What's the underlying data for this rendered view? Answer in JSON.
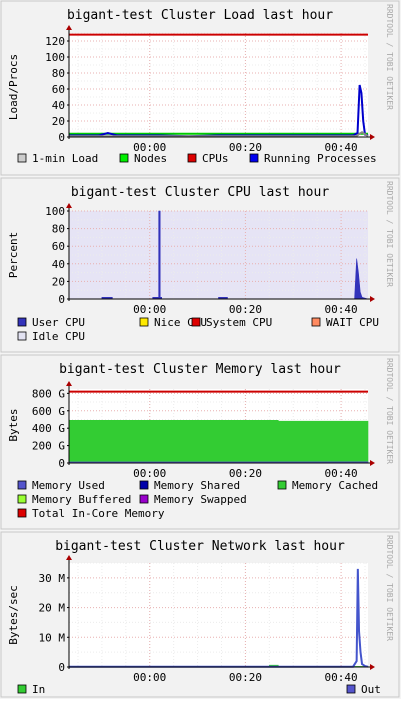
{
  "page": {
    "background": "#ffffff"
  },
  "chart_data": [
    {
      "type": "line",
      "title": "bigant-test Cluster Load last hour",
      "ylabel": "Load/Procs",
      "watermark": "RRDTOOL / TOBI OETIKER",
      "yticks": [
        "0",
        "20",
        "40",
        "60",
        "80",
        "100",
        "120"
      ],
      "ytick_values": [
        0,
        20,
        40,
        60,
        80,
        100,
        120
      ],
      "ylim": [
        0,
        130
      ],
      "xticks": [
        "00:00",
        "00:20",
        "00:40"
      ],
      "xtick_positions": [
        0.27,
        0.59,
        0.91
      ],
      "plot_background": "#ffffff",
      "legend": [
        {
          "label": "1-min Load",
          "color": "#cccccc"
        },
        {
          "label": "Nodes",
          "color": "#00ee00"
        },
        {
          "label": "CPUs",
          "color": "#dd0000"
        },
        {
          "label": "Running Processes",
          "color": "#0000ee"
        }
      ],
      "series": [
        {
          "name": "CPUs",
          "kind": "line",
          "color": "#cc0000",
          "x": [
            0,
            1
          ],
          "y": [
            128,
            128
          ]
        },
        {
          "name": "Nodes",
          "kind": "line",
          "color": "#00cc00",
          "x": [
            0,
            1
          ],
          "y": [
            4,
            4
          ]
        },
        {
          "name": "Running Processes",
          "kind": "line",
          "color": "#0000cc",
          "x": [
            0,
            0.05,
            0.1,
            0.13,
            0.16,
            0.2,
            0.3,
            0.4,
            0.5,
            0.6,
            0.7,
            0.8,
            0.9,
            0.95,
            0.965,
            0.972,
            0.978,
            0.984,
            0.99,
            1
          ],
          "y": [
            2,
            2,
            2,
            5,
            2,
            2,
            2,
            1,
            2,
            2,
            2,
            2,
            2,
            2,
            5,
            65,
            55,
            20,
            3,
            2
          ]
        },
        {
          "name": "1-min Load",
          "kind": "line",
          "color": "#888888",
          "x": [
            0,
            0.5,
            0.96,
            0.98,
            1
          ],
          "y": [
            1,
            1,
            1,
            6,
            1
          ]
        }
      ]
    },
    {
      "type": "area",
      "title": "bigant-test Cluster CPU last hour",
      "ylabel": "Percent",
      "watermark": "RRDTOOL / TOBI OETIKER",
      "yticks": [
        "0",
        "20",
        "40",
        "60",
        "80",
        "100"
      ],
      "ytick_values": [
        0,
        20,
        40,
        60,
        80,
        100
      ],
      "ylim": [
        0,
        100
      ],
      "xticks": [
        "00:00",
        "00:20",
        "00:40"
      ],
      "xtick_positions": [
        0.27,
        0.59,
        0.91
      ],
      "plot_background": "#e6e4f5",
      "legend": [
        {
          "label": "User CPU",
          "color": "#3333bb"
        },
        {
          "label": "Nice CPU",
          "color": "#ffea00"
        },
        {
          "label": "System CPU",
          "color": "#dd0000"
        },
        {
          "label": "WAIT CPU",
          "color": "#ff8a60"
        },
        {
          "label": "Idle CPU",
          "color": "#e2e2f2"
        }
      ],
      "series": [
        {
          "name": "User CPU",
          "kind": "area",
          "color": "#3333bb",
          "x": [
            0,
            0.11,
            0.11,
            0.145,
            0.145,
            0.28,
            0.28,
            0.3,
            0.3,
            0.305,
            0.305,
            0.31,
            0.31,
            0.5,
            0.5,
            0.53,
            0.53,
            0.955,
            0.962,
            0.968,
            0.974,
            0.98,
            0.99,
            1
          ],
          "y": [
            0,
            0,
            2,
            2,
            0,
            0,
            2,
            2,
            100,
            100,
            2,
            2,
            0,
            0,
            2,
            2,
            0,
            0,
            46,
            30,
            8,
            2,
            1,
            0
          ]
        }
      ]
    },
    {
      "type": "area",
      "title": "bigant-test Cluster Memory last hour",
      "ylabel": "Bytes",
      "watermark": "RRDTOOL / TOBI OETIKER",
      "yticks": [
        "0",
        "200 G",
        "400 G",
        "600 G",
        "800 G"
      ],
      "ytick_values": [
        0,
        200,
        400,
        600,
        800
      ],
      "ylim": [
        0,
        850
      ],
      "unit": "G",
      "xticks": [
        "00:00",
        "00:20",
        "00:40"
      ],
      "xtick_positions": [
        0.27,
        0.59,
        0.91
      ],
      "plot_background": "#ffffff",
      "legend": [
        {
          "label": "Memory Used",
          "color": "#5555cc"
        },
        {
          "label": "Memory Shared",
          "color": "#0000aa"
        },
        {
          "label": "Memory Cached",
          "color": "#33cc33"
        },
        {
          "label": "Memory Buffered",
          "color": "#99ff33"
        },
        {
          "label": "Memory Swapped",
          "color": "#9900cc"
        },
        {
          "label": "Total In-Core Memory",
          "color": "#dd0000"
        }
      ],
      "series": [
        {
          "name": "Total In-Core Memory",
          "kind": "line",
          "color": "#cc0000",
          "x": [
            0,
            1
          ],
          "y": [
            820,
            820
          ]
        },
        {
          "name": "Memory Cached",
          "kind": "area",
          "color": "#33cc33",
          "x": [
            0,
            0.7,
            0.7,
            1
          ],
          "y": [
            490,
            490,
            480,
            480
          ]
        },
        {
          "name": "Memory Used",
          "kind": "area",
          "color": "#5555cc",
          "x": [
            0,
            0.5,
            1
          ],
          "y": [
            12,
            12,
            14
          ]
        }
      ]
    },
    {
      "type": "area",
      "title": "bigant-test Cluster Network last hour",
      "ylabel": "Bytes/sec",
      "watermark": "RRDTOOL / TOBI OETIKER",
      "yticks": [
        "0",
        "10 M",
        "20 M",
        "30 M"
      ],
      "ytick_values": [
        0,
        10,
        20,
        30
      ],
      "ylim": [
        0,
        35
      ],
      "unit": "M",
      "xticks": [
        "00:00",
        "00:20",
        "00:40"
      ],
      "xtick_positions": [
        0.27,
        0.59,
        0.91
      ],
      "plot_background": "#ffffff",
      "legend": [
        {
          "label": "In",
          "color": "#33cc33"
        },
        {
          "label": "Out",
          "color": "#5555cc"
        }
      ],
      "series": [
        {
          "name": "In",
          "kind": "area",
          "color": "#33cc33",
          "x": [
            0,
            0.67,
            0.67,
            0.7,
            0.7,
            1
          ],
          "y": [
            0.2,
            0.2,
            0.6,
            0.6,
            0.2,
            0.2
          ]
        },
        {
          "name": "Out",
          "kind": "line",
          "color": "#4455cc",
          "x": [
            0,
            0.95,
            0.962,
            0.966,
            0.97,
            0.975,
            0.98,
            0.99,
            1
          ],
          "y": [
            0.1,
            0.1,
            2,
            33,
            12,
            5,
            1,
            0.3,
            0.1
          ]
        }
      ]
    }
  ]
}
